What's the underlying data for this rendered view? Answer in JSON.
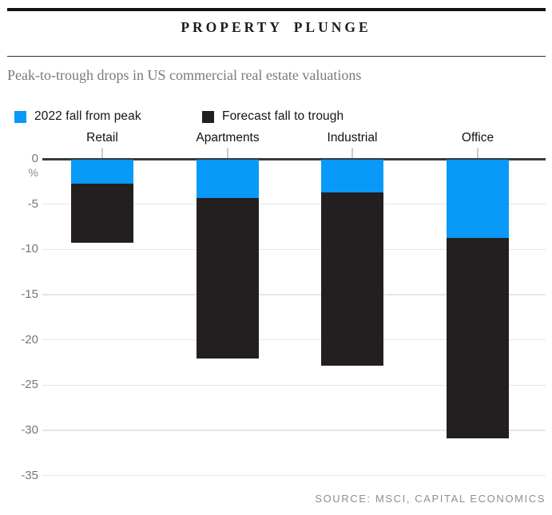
{
  "header": {
    "title": "PROPERTY PLUNGE",
    "subtitle": "Peak-to-trough drops in US commercial real estate valuations"
  },
  "legend": [
    {
      "label": "2022 fall from peak",
      "color": "#0899f9"
    },
    {
      "label": "Forecast fall to trough",
      "color": "#231f20"
    }
  ],
  "source": "SOURCE: MSCI, CAPITAL ECONOMICS",
  "chart_data": {
    "type": "bar",
    "stacked": true,
    "title": "PROPERTY PLUNGE",
    "subtitle": "Peak-to-trough drops in US commercial real estate valuations",
    "categories": [
      "Retail",
      "Apartments",
      "Industrial",
      "Office"
    ],
    "series": [
      {
        "name": "2022 fall from peak",
        "color": "#0899f9",
        "values": [
          -2.7,
          -4.3,
          -3.7,
          -8.7
        ]
      },
      {
        "name": "Forecast fall to trough",
        "color": "#231f20",
        "values": [
          -6.6,
          -17.8,
          -19.2,
          -22.2
        ]
      }
    ],
    "totals": [
      -9.3,
      -22.1,
      -22.9,
      -30.9
    ],
    "unit": "%",
    "y_ticks": [
      0,
      -5,
      -10,
      -15,
      -20,
      -25,
      -30,
      -35
    ],
    "ylim": [
      -35,
      0
    ],
    "grid": true,
    "legend_position": "top",
    "source": "SOURCE: MSCI, CAPITAL ECONOMICS"
  }
}
